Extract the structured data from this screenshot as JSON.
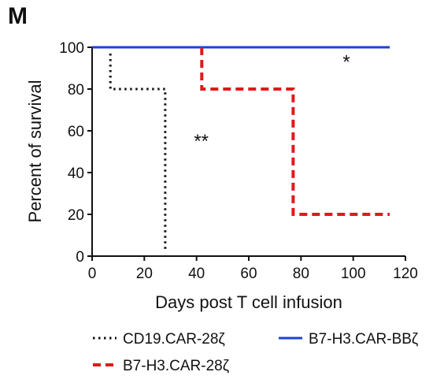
{
  "panel_label": "M",
  "chart_data": {
    "type": "line",
    "step": true,
    "xlabel": "Days post T cell infusion",
    "ylabel": "Percent of survival",
    "xlim": [
      0,
      120
    ],
    "ylim": [
      0,
      100
    ],
    "xticks": [
      0,
      20,
      40,
      60,
      80,
      100,
      120
    ],
    "yticks": [
      0,
      20,
      40,
      60,
      80,
      100
    ],
    "grid": false,
    "legend_position": "bottom",
    "series": [
      {
        "name": "CD19.CAR-28ζ",
        "color": "#111111",
        "style": "dotted",
        "x": [
          7,
          7,
          28,
          28
        ],
        "y": [
          97,
          80,
          80,
          3
        ]
      },
      {
        "name": "B7-H3.CAR-BBζ",
        "color": "#1f3fd6",
        "style": "solid",
        "x": [
          0,
          114
        ],
        "y": [
          100,
          100
        ]
      },
      {
        "name": "B7-H3.CAR-28ζ",
        "color": "#e0191d",
        "style": "dashed",
        "x": [
          42,
          42,
          77,
          77,
          114
        ],
        "y": [
          100,
          80,
          80,
          20,
          20
        ]
      }
    ],
    "annotations": [
      {
        "text": "**",
        "x": 39,
        "y": 52
      },
      {
        "text": "*",
        "x": 96,
        "y": 90
      }
    ]
  }
}
